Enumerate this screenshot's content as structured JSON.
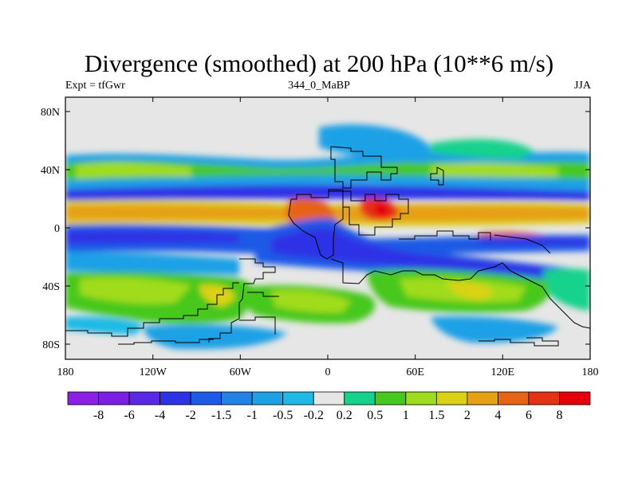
{
  "map": {
    "title": "Divergence (smoothed) at 200 hPa (10**6 m/s)",
    "subtitle_left": "Expt = tfGwr",
    "subtitle_center": "344_0_MaBP",
    "subtitle_right": "JJA",
    "lat_ticks": [
      "80N",
      "40N",
      "0",
      "40S",
      "80S"
    ],
    "lon_ticks": [
      "180",
      "120W",
      "60W",
      "0",
      "60E",
      "120E",
      "180"
    ],
    "colorbar": {
      "labels": [
        "-8",
        "-6",
        "-4",
        "-2",
        "-1.5",
        "-1",
        "-0.5",
        "-0.2",
        "0.2",
        "0.5",
        "1",
        "1.5",
        "2",
        "4",
        "6",
        "8"
      ],
      "colors": [
        "#8c1ee6",
        "#7d1ee6",
        "#5a28e6",
        "#2d32e6",
        "#1e5ae6",
        "#2382e6",
        "#1ea0e6",
        "#1eb9e6",
        "#e6e6e6",
        "#14d28c",
        "#46c81e",
        "#a0dc1e",
        "#dcd214",
        "#e6a014",
        "#e66414",
        "#e63214",
        "#e6000a"
      ]
    }
  }
}
